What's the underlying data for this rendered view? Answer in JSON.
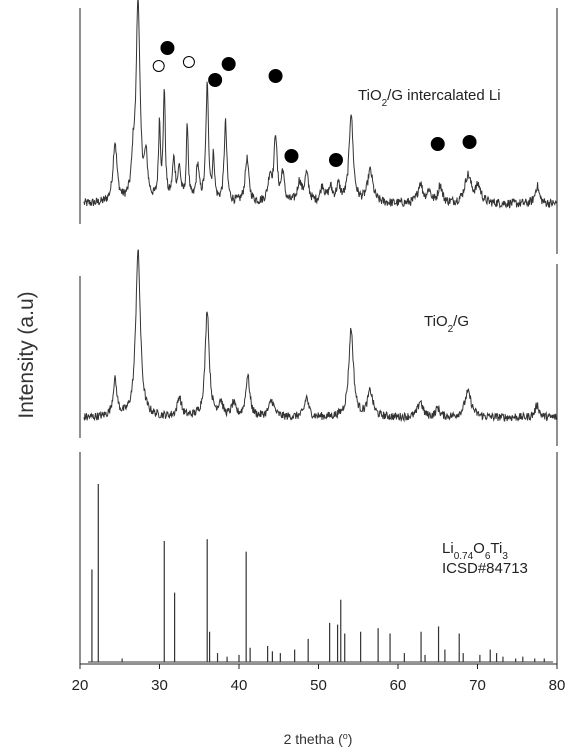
{
  "chart_data": {
    "type": "line",
    "title": "",
    "xlabel": "2 thetha (o)",
    "xlabel_main": "2 thetha (",
    "xlabel_unit": "o",
    "xlabel_close": ")",
    "ylabel": "Intensity (a.u)",
    "xlim": [
      20,
      80
    ],
    "x_ticks": [
      20,
      30,
      40,
      50,
      60,
      70,
      80
    ],
    "grid": false,
    "legend": "none",
    "series": [
      {
        "name": "TiO2/G intercalated Li",
        "label_parts": [
          {
            "t": "TiO",
            "sub": false
          },
          {
            "t": "2",
            "sub": true
          },
          {
            "t": "/G intercalated Li",
            "sub": false
          }
        ],
        "baseline": 0.06,
        "x_range": [
          20.5,
          80
        ],
        "peaks": [
          {
            "x": 24.4,
            "h": 0.3,
            "w": 0.3
          },
          {
            "x": 26.7,
            "h": 0.18,
            "w": 0.25
          },
          {
            "x": 27.3,
            "h": 1.0,
            "w": 0.28
          },
          {
            "x": 28.3,
            "h": 0.2,
            "w": 0.25
          },
          {
            "x": 30.0,
            "h": 0.38,
            "w": 0.15
          },
          {
            "x": 30.6,
            "h": 0.55,
            "w": 0.15
          },
          {
            "x": 31.8,
            "h": 0.2,
            "w": 0.22
          },
          {
            "x": 32.5,
            "h": 0.16,
            "w": 0.22
          },
          {
            "x": 33.5,
            "h": 0.38,
            "w": 0.15
          },
          {
            "x": 34.8,
            "h": 0.18,
            "w": 0.22
          },
          {
            "x": 36.0,
            "h": 0.58,
            "w": 0.2
          },
          {
            "x": 36.8,
            "h": 0.22,
            "w": 0.15
          },
          {
            "x": 38.3,
            "h": 0.4,
            "w": 0.2
          },
          {
            "x": 41.0,
            "h": 0.22,
            "w": 0.28
          },
          {
            "x": 43.9,
            "h": 0.13,
            "w": 0.3
          },
          {
            "x": 44.6,
            "h": 0.33,
            "w": 0.22
          },
          {
            "x": 45.5,
            "h": 0.15,
            "w": 0.22
          },
          {
            "x": 47.6,
            "h": 0.1,
            "w": 0.3
          },
          {
            "x": 48.5,
            "h": 0.14,
            "w": 0.3
          },
          {
            "x": 50.5,
            "h": 0.08,
            "w": 0.3
          },
          {
            "x": 51.5,
            "h": 0.07,
            "w": 0.3
          },
          {
            "x": 52.5,
            "h": 0.08,
            "w": 0.3
          },
          {
            "x": 54.1,
            "h": 0.45,
            "w": 0.3
          },
          {
            "x": 56.5,
            "h": 0.16,
            "w": 0.4
          },
          {
            "x": 62.8,
            "h": 0.1,
            "w": 0.35
          },
          {
            "x": 63.9,
            "h": 0.06,
            "w": 0.3
          },
          {
            "x": 65.3,
            "h": 0.09,
            "w": 0.3
          },
          {
            "x": 68.8,
            "h": 0.14,
            "w": 0.5
          },
          {
            "x": 70.1,
            "h": 0.08,
            "w": 0.4
          },
          {
            "x": 77.5,
            "h": 0.09,
            "w": 0.3
          }
        ],
        "markers": [
          {
            "x": 31.0,
            "y": 0.84,
            "filled": true
          },
          {
            "x": 29.9,
            "y": 0.75,
            "filled": false
          },
          {
            "x": 33.7,
            "y": 0.77,
            "filled": false
          },
          {
            "x": 37.0,
            "y": 0.68,
            "filled": true
          },
          {
            "x": 38.7,
            "y": 0.76,
            "filled": true
          },
          {
            "x": 44.6,
            "y": 0.7,
            "filled": true
          },
          {
            "x": 46.6,
            "y": 0.3,
            "filled": true
          },
          {
            "x": 52.2,
            "y": 0.28,
            "filled": true
          },
          {
            "x": 65.0,
            "y": 0.36,
            "filled": true
          },
          {
            "x": 69.0,
            "y": 0.37,
            "filled": true
          }
        ]
      },
      {
        "name": "TiO2/G",
        "label_parts": [
          {
            "t": "TiO",
            "sub": false
          },
          {
            "t": "2",
            "sub": true
          },
          {
            "t": "/G",
            "sub": false
          }
        ],
        "baseline": 0.08,
        "x_range": [
          20.5,
          80
        ],
        "peaks": [
          {
            "x": 24.4,
            "h": 0.2,
            "w": 0.3
          },
          {
            "x": 27.3,
            "h": 0.92,
            "w": 0.35
          },
          {
            "x": 32.5,
            "h": 0.11,
            "w": 0.3
          },
          {
            "x": 36.0,
            "h": 0.6,
            "w": 0.3
          },
          {
            "x": 37.7,
            "h": 0.08,
            "w": 0.3
          },
          {
            "x": 39.3,
            "h": 0.07,
            "w": 0.3
          },
          {
            "x": 41.1,
            "h": 0.23,
            "w": 0.3
          },
          {
            "x": 44.1,
            "h": 0.09,
            "w": 0.4
          },
          {
            "x": 48.5,
            "h": 0.11,
            "w": 0.3
          },
          {
            "x": 54.1,
            "h": 0.49,
            "w": 0.35
          },
          {
            "x": 56.5,
            "h": 0.14,
            "w": 0.4
          },
          {
            "x": 62.8,
            "h": 0.09,
            "w": 0.35
          },
          {
            "x": 65.0,
            "h": 0.05,
            "w": 0.3
          },
          {
            "x": 68.8,
            "h": 0.14,
            "w": 0.5
          },
          {
            "x": 77.5,
            "h": 0.07,
            "w": 0.3
          }
        ],
        "markers": []
      },
      {
        "name": "Li0.74O6Ti3 ICSD#84713",
        "type": "stick",
        "label_parts": [
          {
            "t": "Li",
            "sub": false
          },
          {
            "t": "0.74",
            "sub": true
          },
          {
            "t": "O",
            "sub": false
          },
          {
            "t": "6",
            "sub": true
          },
          {
            "t": "Ti",
            "sub": false
          },
          {
            "t": "3",
            "sub": true
          }
        ],
        "label_line2": "ICSD#84713",
        "sticks": [
          {
            "x": 21.5,
            "h": 0.52
          },
          {
            "x": 22.3,
            "h": 1.0
          },
          {
            "x": 25.3,
            "h": 0.02
          },
          {
            "x": 30.6,
            "h": 0.68
          },
          {
            "x": 31.9,
            "h": 0.39
          },
          {
            "x": 36.0,
            "h": 0.69
          },
          {
            "x": 36.3,
            "h": 0.17
          },
          {
            "x": 37.3,
            "h": 0.05
          },
          {
            "x": 38.5,
            "h": 0.03
          },
          {
            "x": 40.0,
            "h": 0.04
          },
          {
            "x": 40.9,
            "h": 0.62
          },
          {
            "x": 41.4,
            "h": 0.08
          },
          {
            "x": 43.6,
            "h": 0.09
          },
          {
            "x": 44.2,
            "h": 0.06
          },
          {
            "x": 45.2,
            "h": 0.05
          },
          {
            "x": 47.0,
            "h": 0.07
          },
          {
            "x": 48.7,
            "h": 0.13
          },
          {
            "x": 51.4,
            "h": 0.22
          },
          {
            "x": 52.4,
            "h": 0.21
          },
          {
            "x": 52.8,
            "h": 0.35
          },
          {
            "x": 53.3,
            "h": 0.16
          },
          {
            "x": 55.3,
            "h": 0.17
          },
          {
            "x": 57.5,
            "h": 0.19
          },
          {
            "x": 59.0,
            "h": 0.16
          },
          {
            "x": 60.8,
            "h": 0.05
          },
          {
            "x": 62.9,
            "h": 0.17
          },
          {
            "x": 63.4,
            "h": 0.04
          },
          {
            "x": 65.1,
            "h": 0.2
          },
          {
            "x": 65.9,
            "h": 0.07
          },
          {
            "x": 67.7,
            "h": 0.16
          },
          {
            "x": 68.2,
            "h": 0.05
          },
          {
            "x": 70.3,
            "h": 0.04
          },
          {
            "x": 71.6,
            "h": 0.07
          },
          {
            "x": 72.4,
            "h": 0.05
          },
          {
            "x": 73.2,
            "h": 0.03
          },
          {
            "x": 74.8,
            "h": 0.02
          },
          {
            "x": 75.7,
            "h": 0.03
          },
          {
            "x": 77.2,
            "h": 0.02
          },
          {
            "x": 78.4,
            "h": 0.02
          }
        ]
      }
    ]
  },
  "colors": {
    "line": "#333333",
    "axis": "#222222",
    "ylabel": "#2f2f2f"
  }
}
